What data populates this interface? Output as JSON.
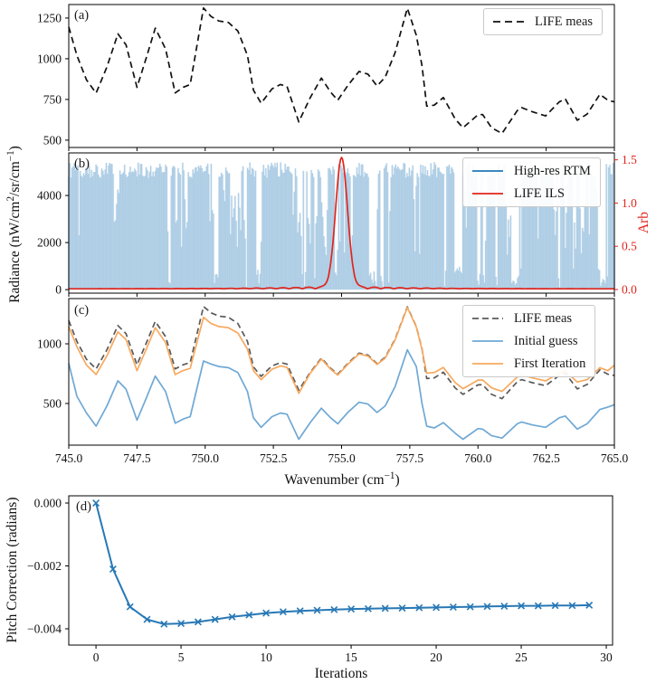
{
  "figure": {
    "background": "#ffffff",
    "panel_labels": {
      "a": "(a)",
      "b": "(b)",
      "c": "(c)",
      "d": "(d)"
    },
    "axis_labels": {
      "radiance_parts": [
        "Radiance (nW/cm",
        "2",
        "/sr/cm",
        "−1",
        ")"
      ],
      "arb": "Arb",
      "wavenumber_parts": [
        "Wavenumber (cm",
        "−1",
        ")"
      ],
      "iterations": "Iterations",
      "pitch_correction": "Pitch Correction (radians)"
    },
    "legends": {
      "a": [
        {
          "label": "LIFE meas",
          "color": "#111111",
          "dash": "8 5"
        }
      ],
      "b": [
        {
          "label": "High-res RTM",
          "color": "#1f77b4",
          "dash": ""
        },
        {
          "label": "LIFE ILS",
          "color": "#e0261d",
          "dash": ""
        }
      ],
      "c": [
        {
          "label": "LIFE meas",
          "color": "#5a5a5a",
          "dash": "7 4"
        },
        {
          "label": "Initial guess",
          "color": "#6fa8d4",
          "dash": ""
        },
        {
          "label": "First Iteration",
          "color": "#f7a95f",
          "dash": ""
        }
      ]
    }
  },
  "chart_data": [
    {
      "id": "a",
      "type": "line",
      "xlim": [
        745,
        765
      ],
      "ylim": [
        455,
        1333
      ],
      "xticks": [
        745,
        747.5,
        750,
        752.5,
        755,
        757.5,
        760,
        762.5,
        765
      ],
      "yticks": [
        [
          500,
          "500"
        ],
        [
          750,
          "750"
        ],
        [
          1000,
          "1000"
        ],
        [
          1250,
          "1250"
        ]
      ],
      "series": [
        {
          "name": "LIFE meas",
          "color": "#111111",
          "dash": "7 4.5",
          "width": 1.7,
          "x": [
            745.0,
            745.3,
            745.65,
            746.0,
            746.4,
            746.8,
            747.1,
            747.5,
            747.85,
            748.17,
            748.55,
            748.9,
            749.2,
            749.45,
            749.94,
            750.22,
            750.5,
            750.85,
            751.2,
            751.55,
            751.77,
            752.05,
            752.45,
            752.76,
            753.0,
            753.43,
            753.85,
            754.26,
            754.6,
            754.86,
            755.25,
            755.64,
            755.97,
            756.3,
            756.6,
            756.96,
            757.41,
            757.74,
            757.95,
            758.12,
            758.4,
            758.73,
            759.17,
            759.45,
            760.0,
            760.17,
            760.5,
            760.88,
            761.44,
            761.6,
            762.0,
            762.48,
            762.98,
            763.2,
            763.64,
            764.0,
            764.47,
            764.76,
            765.0
          ],
          "y": [
            1195,
            1020,
            870,
            789,
            950,
            1153,
            1085,
            824,
            1010,
            1188,
            1060,
            790,
            825,
            842,
            1312,
            1259,
            1232,
            1223,
            1170,
            1020,
            807,
            727,
            815,
            842,
            830,
            612,
            760,
            881,
            795,
            745,
            840,
            922,
            905,
            833,
            887,
            1037,
            1310,
            1144,
            957,
            709,
            715,
            762,
            629,
            576,
            656,
            657,
            576,
            541,
            682,
            700,
            674,
            649,
            735,
            754,
            622,
            660,
            782,
            745,
            735
          ]
        }
      ]
    },
    {
      "id": "b",
      "type": "spikes+line",
      "xlim": [
        745,
        765
      ],
      "ylim_left": [
        -150,
        5810
      ],
      "yticks_left": [
        [
          0,
          "0"
        ],
        [
          2000,
          "2000"
        ],
        [
          4000,
          "4000"
        ]
      ],
      "ylim_right": [
        -0.042,
        1.58
      ],
      "yticks_right": [
        [
          0,
          "0.0"
        ],
        [
          0.5,
          "0.5"
        ],
        [
          1.0,
          "1.0"
        ],
        [
          1.5,
          "1.5"
        ]
      ],
      "ylabel_right": "Arb",
      "xticks": [
        745,
        747.5,
        750,
        752.5,
        755,
        757.5,
        760,
        762.5,
        765
      ],
      "series": [
        {
          "name": "High-res RTM",
          "draw_color": "#7fb0d6",
          "legend_color": "#1f77b4",
          "procedural_spikes": {
            "seed": 12,
            "n": 480,
            "baseline": 55,
            "tall": [
              4750,
              5420
            ],
            "mid": [
              1400,
              4400
            ],
            "low": [
              90,
              1000
            ],
            "p_stay_tall": 0.86,
            "p_stay_mid": 0.6,
            "p_stay_low": 0.55
          }
        },
        {
          "name": "LIFE ILS",
          "color": "#e0261d",
          "width": 1.7,
          "ils_model": {
            "center": 755.0,
            "sigma": 0.22,
            "amplitude": 1.52,
            "ripple_amplitude": 0.03,
            "ripple_period": 0.48,
            "ripple_decay": 2.5,
            "baseline_offset": 0.008
          }
        }
      ]
    },
    {
      "id": "c",
      "type": "line",
      "xlim": [
        745,
        765
      ],
      "ylim": [
        151,
        1379
      ],
      "xticks": [
        [
          745,
          "745.0"
        ],
        [
          747.5,
          "747.5"
        ],
        [
          750,
          "750.0"
        ],
        [
          752.5,
          "752.5"
        ],
        [
          755,
          "755.0"
        ],
        [
          757.5,
          "757.5"
        ],
        [
          760,
          "760.0"
        ],
        [
          762.5,
          "762.5"
        ],
        [
          765,
          "765.0"
        ]
      ],
      "yticks": [
        [
          500,
          "500"
        ],
        [
          1000,
          "1000"
        ]
      ],
      "shared_x": [
        745.0,
        745.3,
        745.65,
        746.0,
        746.4,
        746.8,
        747.1,
        747.5,
        747.85,
        748.17,
        748.55,
        748.9,
        749.2,
        749.45,
        749.94,
        750.22,
        750.5,
        750.85,
        751.2,
        751.55,
        751.77,
        752.05,
        752.45,
        752.76,
        753.0,
        753.43,
        753.85,
        754.26,
        754.6,
        754.86,
        755.25,
        755.64,
        755.97,
        756.3,
        756.6,
        756.96,
        757.41,
        757.74,
        757.95,
        758.12,
        758.4,
        758.73,
        759.17,
        759.45,
        760.0,
        760.17,
        760.5,
        760.88,
        761.44,
        761.6,
        762.0,
        762.48,
        762.98,
        763.2,
        763.64,
        764.0,
        764.47,
        764.76,
        765.0
      ],
      "series": [
        {
          "name": "LIFE meas",
          "color": "#5a5a5a",
          "dash": "6.5 4",
          "width": 1.7,
          "y": [
            1195,
            1020,
            870,
            789,
            950,
            1153,
            1085,
            824,
            1010,
            1188,
            1060,
            790,
            825,
            842,
            1312,
            1259,
            1232,
            1223,
            1170,
            1020,
            807,
            727,
            815,
            842,
            830,
            612,
            760,
            881,
            795,
            745,
            840,
            922,
            905,
            833,
            887,
            1037,
            1310,
            1144,
            957,
            709,
            715,
            762,
            629,
            576,
            656,
            657,
            576,
            541,
            682,
            700,
            674,
            649,
            735,
            754,
            622,
            660,
            782,
            745,
            735
          ]
        },
        {
          "name": "Initial guess",
          "color": "#6fa8d4",
          "dash": "",
          "width": 1.7,
          "y": [
            836,
            560,
            420,
            310,
            480,
            690,
            620,
            360,
            550,
            730,
            600,
            335,
            370,
            390,
            856,
            830,
            810,
            800,
            760,
            600,
            380,
            300,
            390,
            420,
            410,
            200,
            340,
            460,
            380,
            330,
            430,
            510,
            495,
            425,
            480,
            640,
            950,
            810,
            500,
            310,
            295,
            340,
            250,
            200,
            290,
            285,
            230,
            210,
            330,
            345,
            320,
            300,
            380,
            395,
            285,
            330,
            450,
            470,
            490
          ]
        },
        {
          "name": "First Iteration",
          "color": "#f7a95f",
          "dash": "",
          "width": 1.7,
          "y": [
            1145,
            975,
            822,
            743,
            900,
            1100,
            1035,
            775,
            960,
            1135,
            1010,
            742,
            777,
            794,
            1222,
            1170,
            1145,
            1135,
            1090,
            955,
            775,
            700,
            787,
            815,
            803,
            585,
            752,
            873,
            788,
            738,
            833,
            915,
            898,
            827,
            880,
            1030,
            1305,
            1140,
            952,
            754,
            760,
            802,
            674,
            624,
            696,
            697,
            631,
            601,
            722,
            740,
            714,
            689,
            755,
            772,
            680,
            700,
            800,
            775,
            820
          ]
        }
      ]
    },
    {
      "id": "d",
      "type": "line",
      "marker": "x",
      "xticks": [
        [
          0,
          "0"
        ],
        [
          5,
          "5"
        ],
        [
          10,
          "10"
        ],
        [
          15,
          "15"
        ],
        [
          20,
          "20"
        ],
        [
          25,
          "25"
        ],
        [
          30,
          "30"
        ]
      ],
      "yticks": [
        [
          0,
          "0.000"
        ],
        [
          -0.002,
          "−0.002"
        ],
        [
          -0.004,
          "−0.004"
        ]
      ],
      "series": [
        {
          "name": "Pitch Correction",
          "color": "#2878b5",
          "width": 2,
          "x": [
            0,
            1,
            2,
            3,
            4,
            5,
            6,
            7,
            8,
            9,
            10,
            11,
            12,
            13,
            14,
            15,
            16,
            17,
            18,
            19,
            20,
            21,
            22,
            23,
            24,
            25,
            26,
            27,
            28,
            29
          ],
          "y": [
            0.0,
            -0.0021,
            -0.0033,
            -0.0037,
            -0.00385,
            -0.00383,
            -0.00378,
            -0.0037,
            -0.00362,
            -0.00356,
            -0.0035,
            -0.00346,
            -0.00343,
            -0.00341,
            -0.00339,
            -0.00337,
            -0.00336,
            -0.00335,
            -0.00334,
            -0.00333,
            -0.00332,
            -0.00331,
            -0.0033,
            -0.00329,
            -0.00328,
            -0.00327,
            -0.00327,
            -0.00326,
            -0.00326,
            -0.00325
          ]
        }
      ]
    }
  ]
}
